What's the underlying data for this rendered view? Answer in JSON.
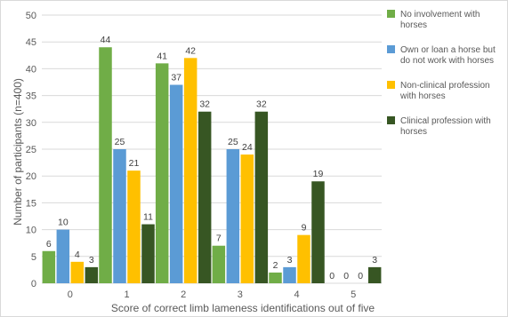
{
  "chart_data": {
    "type": "bar",
    "categories": [
      "0",
      "1",
      "2",
      "3",
      "4",
      "5"
    ],
    "series": [
      {
        "name": "No involvement with horses",
        "color": "#70ad47",
        "values": [
          6,
          44,
          41,
          7,
          2,
          0
        ]
      },
      {
        "name": "Own or loan a horse but do not work with horses",
        "color": "#5b9bd5",
        "values": [
          10,
          25,
          37,
          25,
          3,
          0
        ]
      },
      {
        "name": "Non-clinical profession with horses",
        "color": "#ffc000",
        "values": [
          4,
          21,
          42,
          24,
          9,
          0
        ]
      },
      {
        "name": "Clinical profession with horses",
        "color": "#375623",
        "values": [
          3,
          11,
          32,
          32,
          19,
          3
        ]
      }
    ],
    "title": "",
    "xlabel": "Score of correct limb lameness identifications out of five",
    "ylabel": "Number of participants (n=400)",
    "ylim": [
      0,
      50
    ],
    "yticks": [
      0,
      5,
      10,
      15,
      20,
      25,
      30,
      35,
      40,
      45,
      50
    ],
    "grid": true,
    "legend_position": "right"
  }
}
